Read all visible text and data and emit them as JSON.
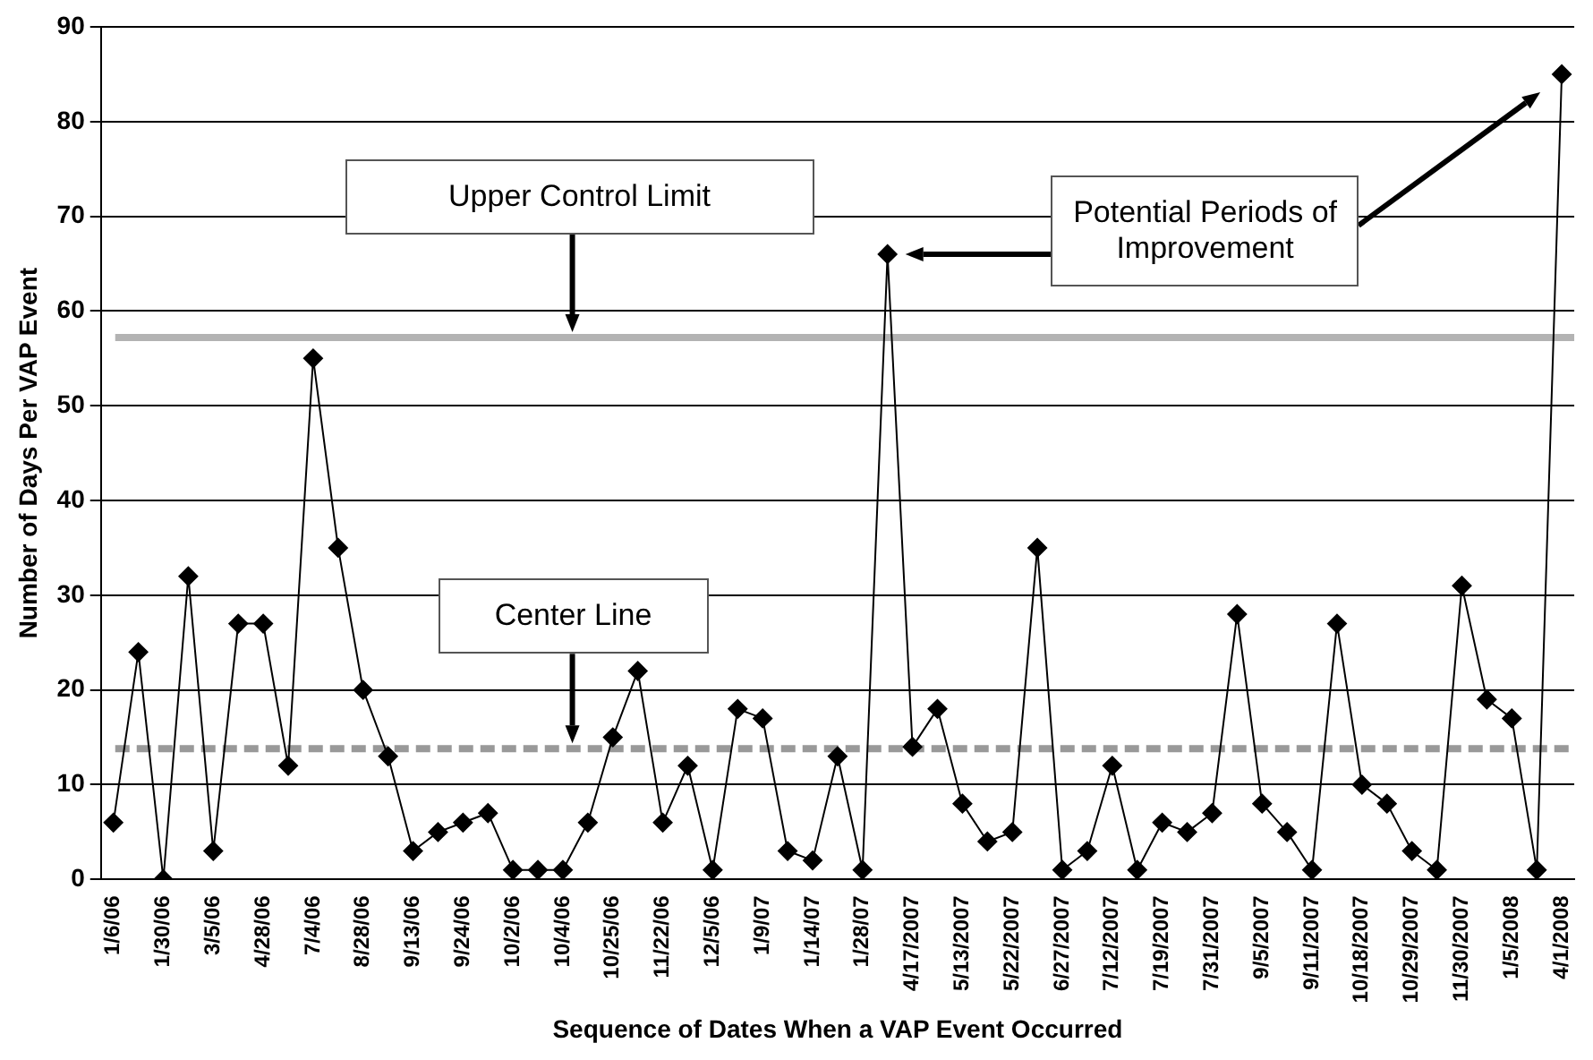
{
  "chart_data": {
    "type": "line",
    "xlabel": "Sequence of Dates When a VAP Event Occurred",
    "ylabel": "Number of Days Per VAP Event",
    "categories": [
      "1/6/06",
      null,
      "1/30/06",
      null,
      "3/5/06",
      null,
      "4/28/06",
      null,
      "7/4/06",
      null,
      "8/28/06",
      null,
      "9/13/06",
      null,
      "9/24/06",
      null,
      "10/2/06",
      null,
      "10/4/06",
      null,
      "10/25/06",
      null,
      "11/22/06",
      null,
      "12/5/06",
      null,
      "1/9/07",
      null,
      "1/14/07",
      null,
      "1/28/07",
      null,
      "4/17/2007",
      null,
      "5/13/2007",
      null,
      "5/22/2007",
      null,
      "6/27/2007",
      null,
      "7/12/2007",
      null,
      "7/19/2007",
      null,
      "7/31/2007",
      null,
      "9/5/2007",
      null,
      "9/11/2007",
      null,
      "10/18/2007",
      null,
      "10/29/2007",
      null,
      "11/30/2007",
      null,
      "1/5/2008",
      null,
      "4/1/2008"
    ],
    "series": [
      {
        "color": "#000000",
        "values": [
          6,
          24,
          0,
          32,
          3,
          27,
          27,
          12,
          55,
          35,
          20,
          13,
          3,
          5,
          6,
          7,
          1,
          1,
          1,
          6,
          15,
          22,
          6,
          12,
          1,
          18,
          17,
          3,
          2,
          13,
          1,
          66,
          14,
          18,
          8,
          4,
          5,
          35,
          1,
          3,
          12,
          1,
          6,
          5,
          7,
          28,
          8,
          5,
          1,
          27,
          10,
          8,
          3,
          1,
          31,
          19,
          17,
          1,
          85
        ]
      }
    ],
    "ylim": [
      0,
      90
    ],
    "yticks": [
      0,
      10,
      20,
      30,
      40,
      50,
      60,
      70,
      80,
      90
    ],
    "grid": "y",
    "marker": "diamond",
    "line_style": "solid",
    "legend": false,
    "ref_lines": [
      {
        "axis": "y",
        "value": 57.2,
        "color": "#b3b3b3",
        "line_style": "solid"
      },
      {
        "axis": "y",
        "value": 13.8,
        "color": "#999999",
        "line_style": "dashed"
      }
    ],
    "annotations": [
      "Upper Control Limit",
      "Center Line",
      "Potential Periods of Improvement"
    ]
  }
}
